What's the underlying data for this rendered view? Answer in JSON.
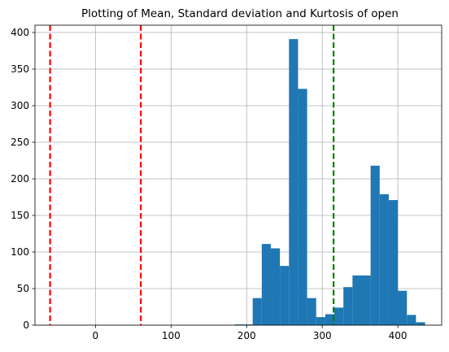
{
  "chart_data": {
    "type": "bar",
    "title": "Plotting of Mean, Standard deviation and Kurtosis of open",
    "xlabel": "",
    "ylabel": "",
    "xlim": [
      -80,
      458
    ],
    "ylim": [
      0,
      410
    ],
    "grid": true,
    "x_ticks": [
      0,
      100,
      200,
      300,
      400
    ],
    "y_ticks": [
      0,
      50,
      100,
      150,
      200,
      250,
      300,
      350,
      400
    ],
    "bar_color": "#1f77b4",
    "bins": [
      {
        "x0": 184,
        "x1": 196,
        "value": 1
      },
      {
        "x0": 196,
        "x1": 208,
        "value": 1
      },
      {
        "x0": 208,
        "x1": 220,
        "value": 37
      },
      {
        "x0": 220,
        "x1": 232,
        "value": 111
      },
      {
        "x0": 232,
        "x1": 244,
        "value": 105
      },
      {
        "x0": 244,
        "x1": 256,
        "value": 81
      },
      {
        "x0": 256,
        "x1": 268,
        "value": 391
      },
      {
        "x0": 268,
        "x1": 280,
        "value": 323
      },
      {
        "x0": 280,
        "x1": 292,
        "value": 37
      },
      {
        "x0": 292,
        "x1": 304,
        "value": 11
      },
      {
        "x0": 304,
        "x1": 316,
        "value": 15
      },
      {
        "x0": 316,
        "x1": 328,
        "value": 24
      },
      {
        "x0": 328,
        "x1": 340,
        "value": 52
      },
      {
        "x0": 340,
        "x1": 352,
        "value": 68
      },
      {
        "x0": 352,
        "x1": 364,
        "value": 68
      },
      {
        "x0": 364,
        "x1": 376,
        "value": 218
      },
      {
        "x0": 376,
        "x1": 388,
        "value": 179
      },
      {
        "x0": 388,
        "x1": 400,
        "value": 171
      },
      {
        "x0": 400,
        "x1": 412,
        "value": 47
      },
      {
        "x0": 412,
        "x1": 424,
        "value": 14
      },
      {
        "x0": 424,
        "x1": 436,
        "value": 4
      }
    ],
    "vlines": [
      {
        "x": -60,
        "color": "#ff0000",
        "style": "dashed"
      },
      {
        "x": 60,
        "color": "#ff0000",
        "style": "dashed"
      },
      {
        "x": 315,
        "color": "#008000",
        "style": "dashed"
      }
    ]
  }
}
